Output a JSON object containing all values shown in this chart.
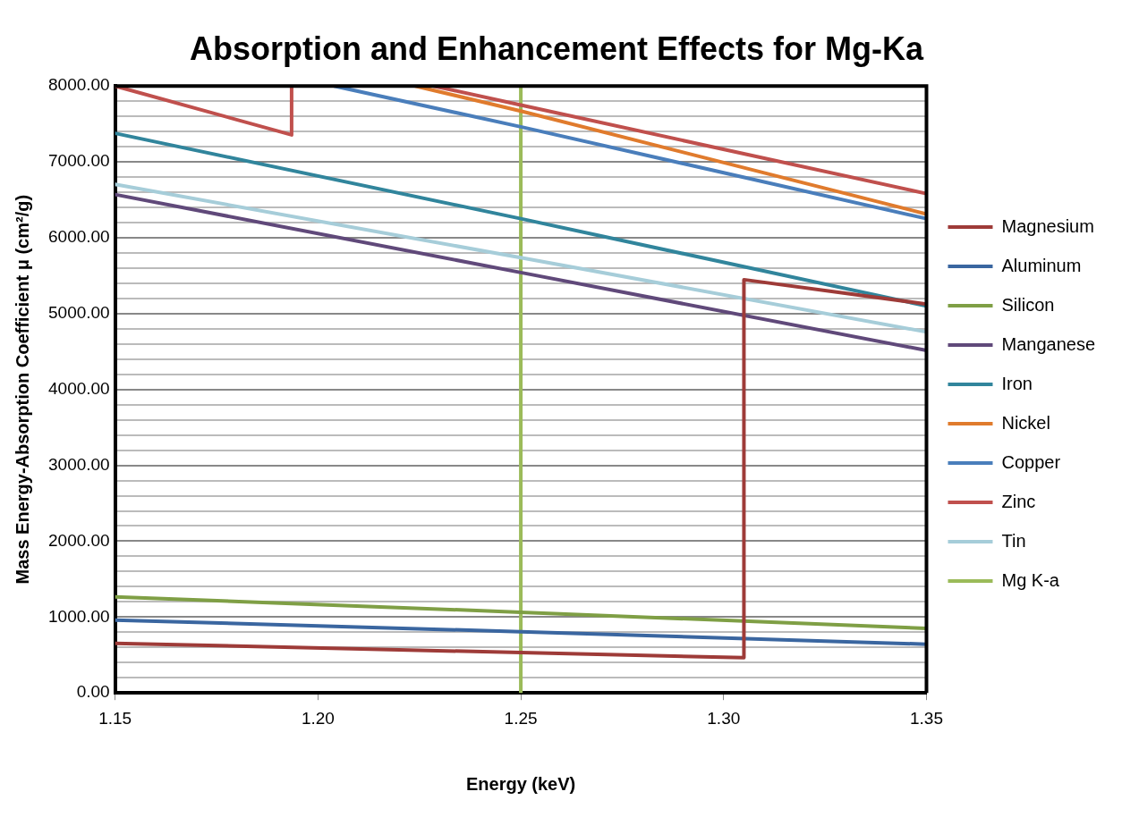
{
  "chart_data": {
    "type": "line",
    "title": "Absorption and Enhancement Effects for Mg-Ka",
    "xlabel": "Energy (keV)",
    "ylabel": "Mass Energy-Absorption Coefficient μ (cm²/g)",
    "xlim": [
      1.15,
      1.35
    ],
    "xticks": [
      1.15,
      {
        "value": 1.2,
        "label": "1.20"
      },
      1.25,
      {
        "value": 1.3,
        "label": "1.30"
      },
      1.35
    ],
    "ylim": [
      0,
      8000
    ],
    "yticks": [
      {
        "value": 0,
        "label": "0.00"
      },
      {
        "value": 200,
        "label": null
      },
      {
        "value": 400,
        "label": null
      },
      {
        "value": 600,
        "label": null
      },
      {
        "value": 800,
        "label": null
      },
      {
        "value": 1000,
        "label": "1000.00"
      },
      {
        "value": 1200,
        "label": null
      },
      {
        "value": 1400,
        "label": null
      },
      {
        "value": 1600,
        "label": null
      },
      {
        "value": 1800,
        "label": null
      },
      {
        "value": 2000,
        "label": "2000.00"
      },
      {
        "value": 2200,
        "label": null
      },
      {
        "value": 2400,
        "label": null
      },
      {
        "value": 2600,
        "label": null
      },
      {
        "value": 2800,
        "label": null
      },
      {
        "value": 3000,
        "label": "3000.00"
      },
      {
        "value": 3200,
        "label": null
      },
      {
        "value": 3400,
        "label": null
      },
      {
        "value": 3600,
        "label": null
      },
      {
        "value": 3800,
        "label": null
      },
      {
        "value": 4000,
        "label": "4000.00"
      },
      {
        "value": 4200,
        "label": null
      },
      {
        "value": 4400,
        "label": null
      },
      {
        "value": 4600,
        "label": null
      },
      {
        "value": 4800,
        "label": null
      },
      {
        "value": 5000,
        "label": "5000.00"
      },
      {
        "value": 5200,
        "label": null
      },
      {
        "value": 5400,
        "label": null
      },
      {
        "value": 5600,
        "label": null
      },
      {
        "value": 5800,
        "label": null
      },
      {
        "value": 6000,
        "label": "6000.00"
      },
      {
        "value": 6200,
        "label": null
      },
      {
        "value": 6400,
        "label": null
      },
      {
        "value": 6600,
        "label": null
      },
      {
        "value": 6800,
        "label": null
      },
      {
        "value": 7000,
        "label": "7000.00"
      },
      {
        "value": 7200,
        "label": null
      },
      {
        "value": 7400,
        "label": null
      },
      {
        "value": 7600,
        "label": null
      },
      {
        "value": 7800,
        "label": null
      },
      {
        "value": 8000,
        "label": "8000.00"
      }
    ],
    "grid": "y",
    "legend": "right",
    "marker": "none",
    "line_style": "solid",
    "series": [
      {
        "name": "Magnesium",
        "color": "#9e3b38",
        "x": [
          1.15,
          1.25,
          1.305,
          1.305,
          1.35
        ],
        "values": [
          654,
          532,
          465,
          5447,
          5125
        ]
      },
      {
        "name": "Aluminum",
        "color": "#3a66a0",
        "x": [
          1.15,
          1.25,
          1.35
        ],
        "values": [
          960,
          807,
          642
        ]
      },
      {
        "name": "Silicon",
        "color": "#7f9f45",
        "x": [
          1.15,
          1.25,
          1.35
        ],
        "values": [
          1266,
          1064,
          850
        ]
      },
      {
        "name": "Manganese",
        "color": "#60497a",
        "x": [
          1.15,
          1.25,
          1.35
        ],
        "values": [
          6569,
          5541,
          4514
        ]
      },
      {
        "name": "Iron",
        "color": "#31859c",
        "x": [
          1.15,
          1.25,
          1.35
        ],
        "values": [
          7376,
          6251,
          5100
        ]
      },
      {
        "name": "Nickel",
        "color": "#e07b2d",
        "x": [
          1.224,
          1.25,
          1.35
        ],
        "values": [
          8000,
          7670,
          6312
        ]
      },
      {
        "name": "Copper",
        "color": "#4a7ebb",
        "x": [
          1.204,
          1.25,
          1.35
        ],
        "values": [
          8000,
          7462,
          6251
        ]
      },
      {
        "name": "Zinc",
        "color": "#c0504d",
        "x": [
          1.15,
          1.1935,
          1.1935,
          null,
          1.2285,
          1.25,
          1.35
        ],
        "values": [
          8000,
          7355,
          8000,
          null,
          8000,
          7749,
          6581
        ]
      },
      {
        "name": "Tin",
        "color": "#a6cdd9",
        "x": [
          1.15,
          1.25,
          1.35
        ],
        "values": [
          6703,
          5737,
          4758
        ]
      },
      {
        "name": "Mg K-a",
        "color": "#9bbb59",
        "x": [
          1.25,
          1.25
        ],
        "values": [
          0,
          8000
        ]
      }
    ]
  }
}
